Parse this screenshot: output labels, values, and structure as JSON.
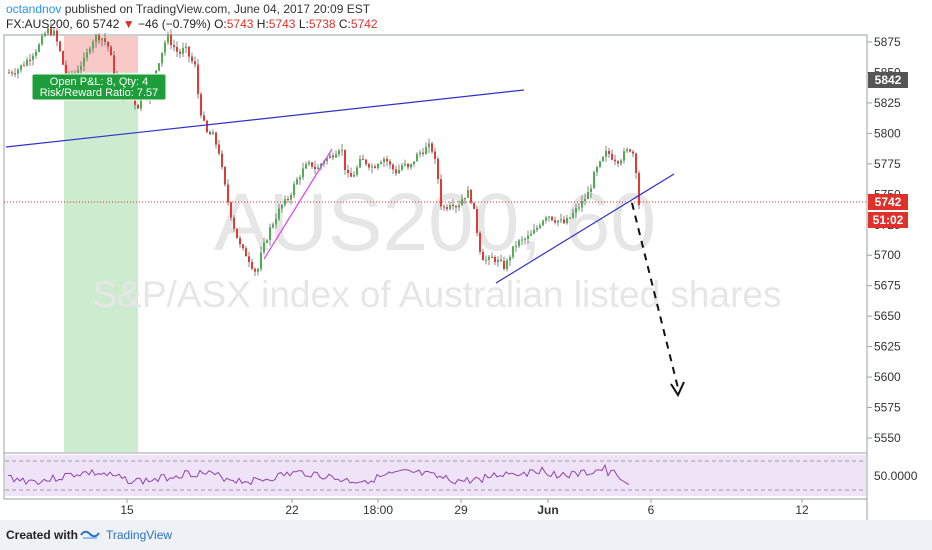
{
  "header": {
    "user": "octandnov",
    "published": "published on TradingView.com, June 04, 2017 20:09 EST",
    "symbol_line_prefix": "FX:AUS200, 60 5742",
    "change_arrow": "▼",
    "change": "−46 (−0.79%)",
    "ohlc_o": "O:",
    "ohlc_o_val": "5743",
    "ohlc_h": "H:",
    "ohlc_h_val": "5743",
    "ohlc_l": "L:",
    "ohlc_l_val": "5738",
    "ohlc_c": "C:",
    "ohlc_c_val": "5742"
  },
  "watermark": {
    "symbol": "AUS200, 60",
    "description": "S&P/ASX index of Australian listed shares"
  },
  "position_label": {
    "line1": "Open P&L: 8, Qty: 4",
    "line2": "Risk/Reward Ratio: 7.57"
  },
  "price_axis": {
    "ticks": [
      "5875",
      "5850",
      "5825",
      "5800",
      "5775",
      "5750",
      "5725",
      "5700",
      "5675",
      "5650",
      "5625",
      "5600",
      "5575",
      "5550"
    ],
    "tag_alert": "5842",
    "tag_price": "5742",
    "tag_countdown": "51:02"
  },
  "rsi_axis": {
    "label": "50.0000"
  },
  "time_axis": {
    "labels": [
      "15",
      "22",
      "18:00",
      "29",
      "Jun",
      "6",
      "12"
    ]
  },
  "footer": {
    "created_with": "Created with",
    "brand": "TradingView"
  },
  "colors": {
    "up": "#4caf50",
    "down": "#e53935",
    "trendline": "#3030c8",
    "magenta_line": "#e040fb",
    "rsi": "#8e44ad",
    "price_tag": "#e0302a",
    "alert_tag": "#555555",
    "position_box": "#1e9e3a"
  },
  "chart_data": {
    "type": "line",
    "title": "FX:AUS200, 60",
    "ylim": [
      5535,
      5880
    ],
    "close_path": [
      [
        0,
        5850
      ],
      [
        8,
        5852
      ],
      [
        16,
        5858
      ],
      [
        23,
        5865
      ],
      [
        30,
        5872
      ],
      [
        38,
        5885
      ],
      [
        45,
        5882
      ],
      [
        50,
        5870
      ],
      [
        56,
        5850
      ],
      [
        62,
        5845
      ],
      [
        70,
        5855
      ],
      [
        76,
        5860
      ],
      [
        82,
        5875
      ],
      [
        88,
        5880
      ],
      [
        94,
        5878
      ],
      [
        100,
        5870
      ],
      [
        106,
        5845
      ],
      [
        112,
        5830
      ],
      [
        118,
        5835
      ],
      [
        124,
        5830
      ],
      [
        128,
        5820
      ],
      [
        134,
        5835
      ],
      [
        140,
        5830
      ],
      [
        146,
        5850
      ],
      [
        152,
        5865
      ],
      [
        158,
        5880
      ],
      [
        164,
        5872
      ],
      [
        170,
        5865
      ],
      [
        176,
        5870
      ],
      [
        182,
        5860
      ],
      [
        186,
        5855
      ],
      [
        190,
        5825
      ],
      [
        194,
        5810
      ],
      [
        198,
        5800
      ],
      [
        204,
        5798
      ],
      [
        210,
        5785
      ],
      [
        215,
        5760
      ],
      [
        220,
        5740
      ],
      [
        226,
        5720
      ],
      [
        232,
        5705
      ],
      [
        238,
        5700
      ],
      [
        244,
        5690
      ],
      [
        248,
        5685
      ],
      [
        252,
        5700
      ],
      [
        256,
        5710
      ],
      [
        260,
        5720
      ],
      [
        266,
        5730
      ],
      [
        272,
        5740
      ],
      [
        278,
        5745
      ],
      [
        284,
        5755
      ],
      [
        290,
        5765
      ],
      [
        296,
        5772
      ],
      [
        302,
        5775
      ],
      [
        308,
        5770
      ],
      [
        314,
        5778
      ],
      [
        320,
        5780
      ],
      [
        326,
        5785
      ],
      [
        332,
        5790
      ],
      [
        336,
        5772
      ],
      [
        340,
        5762
      ],
      [
        346,
        5768
      ],
      [
        352,
        5778
      ],
      [
        358,
        5776
      ],
      [
        364,
        5772
      ],
      [
        370,
        5778
      ],
      [
        376,
        5780
      ],
      [
        382,
        5772
      ],
      [
        388,
        5768
      ],
      [
        394,
        5775
      ],
      [
        400,
        5770
      ],
      [
        406,
        5780
      ],
      [
        412,
        5785
      ],
      [
        418,
        5788
      ],
      [
        422,
        5790
      ],
      [
        428,
        5770
      ],
      [
        432,
        5742
      ],
      [
        436,
        5738
      ],
      [
        442,
        5745
      ],
      [
        448,
        5740
      ],
      [
        454,
        5748
      ],
      [
        460,
        5752
      ],
      [
        464,
        5740
      ],
      [
        468,
        5720
      ],
      [
        472,
        5700
      ],
      [
        478,
        5695
      ],
      [
        484,
        5698
      ],
      [
        490,
        5694
      ],
      [
        496,
        5690
      ],
      [
        502,
        5702
      ],
      [
        508,
        5710
      ],
      [
        514,
        5712
      ],
      [
        520,
        5715
      ],
      [
        526,
        5720
      ],
      [
        532,
        5728
      ],
      [
        538,
        5734
      ],
      [
        544,
        5730
      ],
      [
        550,
        5728
      ],
      [
        556,
        5726
      ],
      [
        562,
        5732
      ],
      [
        568,
        5738
      ],
      [
        574,
        5744
      ],
      [
        580,
        5752
      ],
      [
        586,
        5768
      ],
      [
        592,
        5776
      ],
      [
        598,
        5785
      ],
      [
        604,
        5780
      ],
      [
        610,
        5778
      ],
      [
        616,
        5784
      ],
      [
        622,
        5788
      ],
      [
        626,
        5780
      ],
      [
        630,
        5742
      ]
    ],
    "rsi_midline": 50
  }
}
